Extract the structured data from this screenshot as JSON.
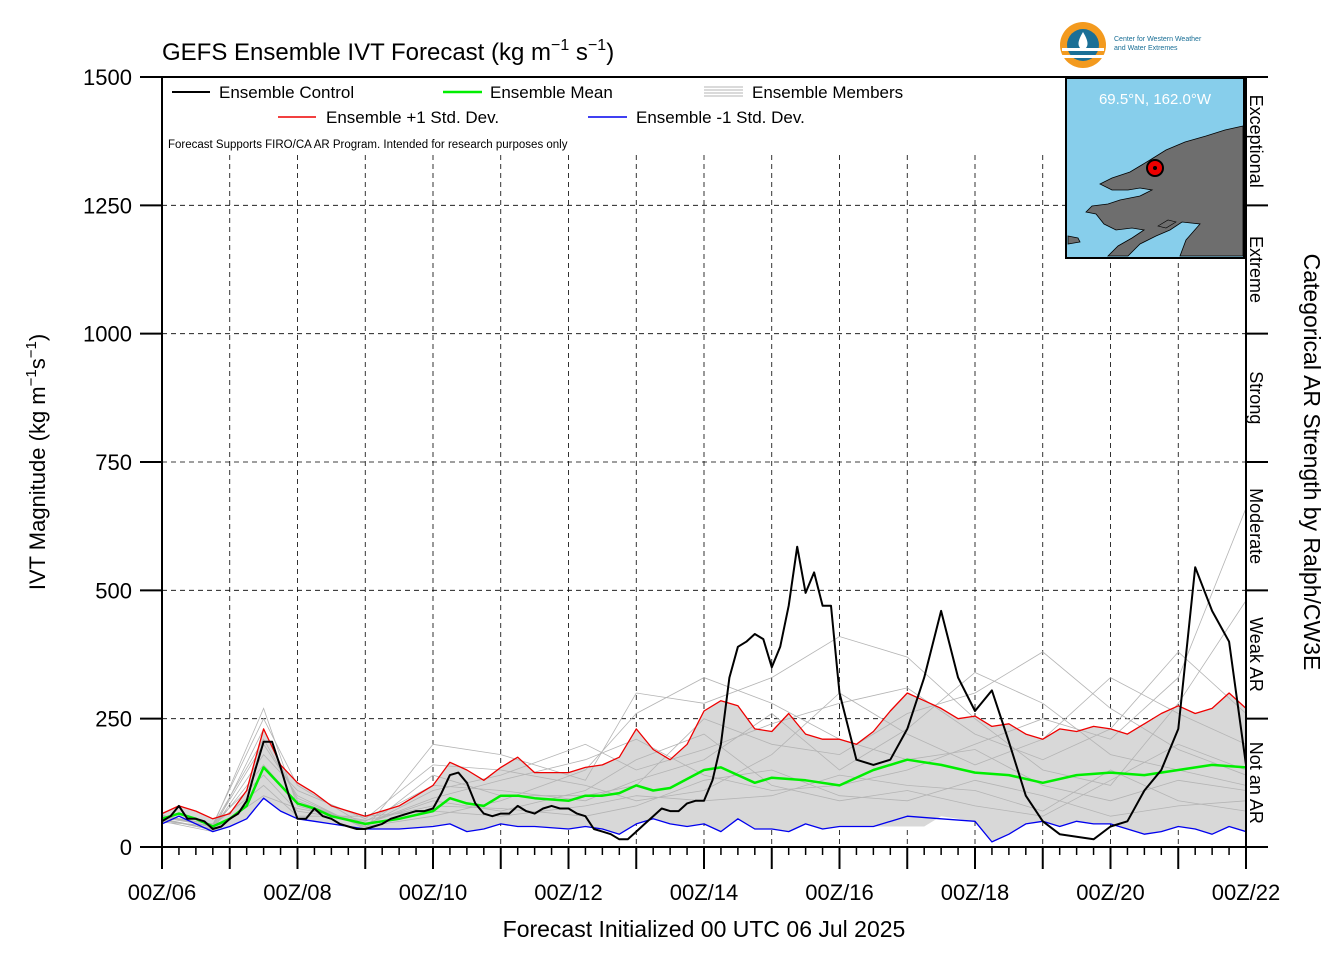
{
  "chart_data": {
    "type": "line",
    "title_main": "GEFS Ensemble IVT Forecast (kg m",
    "title_sup1": "−1",
    "title_mid": " s",
    "title_sup2": "−1",
    "title_end": ")",
    "ylabel": "IVT Magnitude (kg m−1s−1)",
    "xlabel": "Forecast Initialized 00 UTC 06 Jul 2025",
    "right_label": "Categorical AR Strength by Ralph/CW3E",
    "note": "Forecast Supports FIRO/CA AR Program. Intended for research purposes only",
    "logo_text": [
      "Center for Western Weather",
      "and Water Extremes"
    ],
    "inset_label": "69.5°N, 162.0°W",
    "ylim": [
      0,
      1500
    ],
    "yticks": [
      0,
      250,
      500,
      750,
      1000,
      1250,
      1500
    ],
    "xlim": [
      0,
      384
    ],
    "xticks": [
      {
        "hour": 0,
        "label": "00Z/06"
      },
      {
        "hour": 48,
        "label": "00Z/08"
      },
      {
        "hour": 96,
        "label": "00Z/10"
      },
      {
        "hour": 144,
        "label": "00Z/12"
      },
      {
        "hour": 192,
        "label": "00Z/14"
      },
      {
        "hour": 240,
        "label": "00Z/16"
      },
      {
        "hour": 288,
        "label": "00Z/18"
      },
      {
        "hour": 336,
        "label": "00Z/20"
      },
      {
        "hour": 384,
        "label": "00Z/22"
      }
    ],
    "categories": [
      {
        "label": "Not an AR",
        "from": 0,
        "to": 250
      },
      {
        "label": "Weak AR",
        "from": 250,
        "to": 500
      },
      {
        "label": "Moderate",
        "from": 500,
        "to": 750
      },
      {
        "label": "Strong",
        "from": 750,
        "to": 1000
      },
      {
        "label": "Extreme",
        "from": 1000,
        "to": 1250
      },
      {
        "label": "Exceptional",
        "from": 1250,
        "to": 1500
      }
    ],
    "legend": [
      {
        "label": "Ensemble Control",
        "color": "#000000"
      },
      {
        "label": "Ensemble Mean",
        "color": "#00ee00"
      },
      {
        "label": "Ensemble Members",
        "color": "#b4b4b4"
      },
      {
        "label": "Ensemble +1 Std. Dev.",
        "color": "#ee0000"
      },
      {
        "label": "Ensemble -1 Std. Dev.",
        "color": "#0000ee"
      }
    ],
    "series": [
      {
        "name": "Ensemble Control",
        "color": "#000000",
        "x": [
          0,
          3,
          6,
          9,
          12,
          15,
          18,
          21,
          24,
          27,
          30,
          33,
          36,
          39,
          42,
          45,
          48,
          51,
          54,
          57,
          60,
          63,
          66,
          69,
          72,
          75,
          78,
          81,
          84,
          87,
          90,
          93,
          96,
          99,
          102,
          105,
          108,
          111,
          114,
          117,
          120,
          123,
          126,
          129,
          132,
          135,
          138,
          141,
          144,
          147,
          150,
          153,
          156,
          159,
          162,
          165,
          168,
          171,
          174,
          177,
          180,
          183,
          186,
          189,
          192,
          195,
          198,
          201,
          204,
          207,
          210,
          213,
          216,
          219,
          222,
          225,
          228,
          231,
          234,
          237,
          240,
          246,
          252,
          258,
          264,
          270,
          276,
          282,
          288,
          294,
          300,
          306,
          312,
          318,
          324,
          330,
          336,
          342,
          348,
          354,
          360,
          366,
          372,
          378,
          384
        ],
        "y": [
          50,
          60,
          80,
          55,
          55,
          50,
          35,
          40,
          55,
          65,
          90,
          150,
          205,
          205,
          155,
          100,
          55,
          55,
          75,
          60,
          55,
          45,
          40,
          35,
          35,
          40,
          45,
          55,
          60,
          65,
          70,
          70,
          75,
          105,
          140,
          145,
          125,
          85,
          65,
          60,
          65,
          65,
          80,
          70,
          65,
          75,
          80,
          75,
          75,
          65,
          60,
          35,
          30,
          25,
          15,
          15,
          30,
          45,
          60,
          75,
          70,
          70,
          85,
          90,
          90,
          130,
          200,
          330,
          390,
          400,
          415,
          405,
          350,
          390,
          470,
          585,
          495,
          535,
          470,
          470,
          300,
          170,
          160,
          170,
          230,
          330,
          460,
          330,
          265,
          305,
          205,
          100,
          50,
          25,
          20,
          15,
          40,
          50,
          110,
          150,
          230,
          545,
          460,
          400,
          160
        ]
      },
      {
        "name": "Ensemble Mean",
        "color": "#00ee00",
        "x": [
          0,
          6,
          12,
          18,
          24,
          30,
          36,
          42,
          48,
          54,
          60,
          72,
          84,
          96,
          102,
          108,
          114,
          120,
          126,
          132,
          144,
          150,
          156,
          162,
          168,
          174,
          180,
          192,
          198,
          210,
          216,
          228,
          240,
          252,
          264,
          276,
          288,
          300,
          312,
          324,
          336,
          348,
          360,
          372,
          384
        ],
        "y": [
          55,
          65,
          55,
          40,
          55,
          80,
          155,
          120,
          85,
          75,
          60,
          45,
          55,
          70,
          95,
          85,
          80,
          100,
          100,
          95,
          90,
          100,
          100,
          105,
          120,
          110,
          115,
          150,
          155,
          125,
          135,
          130,
          120,
          150,
          170,
          160,
          145,
          140,
          125,
          140,
          145,
          140,
          150,
          160,
          155
        ]
      },
      {
        "name": "Ensemble +1 Std. Dev.",
        "color": "#ee0000",
        "x": [
          0,
          6,
          12,
          18,
          24,
          30,
          36,
          42,
          48,
          54,
          60,
          72,
          84,
          96,
          102,
          108,
          114,
          120,
          126,
          132,
          144,
          150,
          156,
          162,
          168,
          174,
          180,
          186,
          192,
          198,
          204,
          210,
          216,
          222,
          228,
          234,
          240,
          246,
          252,
          258,
          264,
          270,
          276,
          282,
          288,
          294,
          300,
          306,
          312,
          318,
          324,
          330,
          336,
          342,
          348,
          354,
          360,
          366,
          372,
          378,
          384
        ],
        "y": [
          65,
          80,
          70,
          55,
          65,
          110,
          230,
          160,
          125,
          105,
          80,
          60,
          80,
          120,
          165,
          150,
          130,
          155,
          175,
          145,
          145,
          155,
          160,
          175,
          230,
          190,
          170,
          200,
          265,
          285,
          275,
          230,
          225,
          260,
          220,
          210,
          210,
          200,
          225,
          265,
          300,
          285,
          270,
          250,
          255,
          235,
          240,
          220,
          210,
          230,
          225,
          235,
          230,
          220,
          240,
          260,
          275,
          260,
          270,
          300,
          270
        ]
      },
      {
        "name": "Ensemble -1 Std. Dev.",
        "color": "#0000ee",
        "x": [
          0,
          6,
          12,
          18,
          24,
          30,
          36,
          42,
          48,
          54,
          60,
          72,
          84,
          96,
          102,
          108,
          114,
          120,
          126,
          132,
          144,
          150,
          156,
          162,
          168,
          174,
          180,
          186,
          192,
          198,
          204,
          210,
          216,
          222,
          228,
          234,
          240,
          252,
          264,
          276,
          288,
          294,
          300,
          306,
          312,
          318,
          324,
          330,
          336,
          342,
          348,
          354,
          360,
          366,
          372,
          378,
          384
        ],
        "y": [
          45,
          60,
          45,
          30,
          40,
          55,
          95,
          70,
          55,
          50,
          45,
          35,
          35,
          40,
          45,
          30,
          35,
          45,
          40,
          40,
          35,
          40,
          35,
          25,
          45,
          55,
          45,
          40,
          45,
          30,
          55,
          35,
          35,
          30,
          45,
          35,
          40,
          40,
          60,
          55,
          50,
          10,
          25,
          45,
          50,
          40,
          50,
          45,
          45,
          35,
          25,
          30,
          40,
          35,
          25,
          40,
          30
        ]
      }
    ],
    "members_band": {
      "x": [
        0,
        6,
        12,
        18,
        24,
        30,
        36,
        42,
        48,
        54,
        60,
        72,
        84,
        96,
        102,
        108,
        114,
        120,
        126,
        132,
        144,
        150,
        156,
        162,
        168,
        174,
        180,
        186,
        192,
        198,
        204,
        210,
        216,
        222,
        228,
        234,
        240,
        246,
        252,
        258,
        264,
        270,
        276,
        282,
        288,
        294,
        300,
        306,
        312,
        318,
        324,
        330,
        336,
        342,
        348,
        354,
        360,
        366,
        372,
        378,
        384
      ],
      "upper": [
        65,
        80,
        70,
        55,
        65,
        110,
        230,
        160,
        125,
        105,
        80,
        60,
        80,
        120,
        165,
        150,
        130,
        155,
        175,
        145,
        145,
        155,
        160,
        175,
        230,
        190,
        170,
        200,
        265,
        285,
        275,
        230,
        225,
        260,
        220,
        210,
        210,
        200,
        225,
        265,
        300,
        285,
        270,
        250,
        255,
        235,
        240,
        220,
        210,
        230,
        225,
        235,
        230,
        220,
        240,
        260,
        275,
        260,
        270,
        300,
        270
      ],
      "lower": [
        45,
        60,
        45,
        30,
        40,
        55,
        95,
        70,
        55,
        50,
        45,
        35,
        35,
        40,
        45,
        30,
        35,
        45,
        40,
        40,
        35,
        40,
        35,
        25,
        45,
        55,
        45,
        40,
        45,
        30,
        55,
        35,
        35,
        30,
        45,
        35,
        40,
        40,
        40,
        40,
        40,
        40,
        60,
        55,
        50,
        10,
        25,
        45,
        50,
        40,
        50,
        45,
        45,
        35,
        25,
        30,
        40,
        35,
        25,
        40,
        30
      ]
    },
    "members": [
      [
        0,
        60,
        18,
        40,
        36,
        270,
        48,
        80,
        72,
        45,
        96,
        90,
        120,
        70,
        150,
        110,
        168,
        170,
        192,
        220,
        216,
        120,
        240,
        90,
        264,
        110,
        288,
        80,
        312,
        60,
        336,
        130,
        360,
        200,
        384,
        150
      ],
      [
        0,
        55,
        18,
        35,
        36,
        180,
        48,
        110,
        72,
        55,
        96,
        160,
        120,
        150,
        150,
        120,
        168,
        90,
        192,
        110,
        216,
        180,
        240,
        300,
        264,
        220,
        288,
        160,
        312,
        210,
        336,
        330,
        360,
        260,
        384,
        200
      ],
      [
        0,
        50,
        18,
        30,
        36,
        230,
        48,
        90,
        72,
        40,
        96,
        60,
        120,
        90,
        150,
        150,
        168,
        260,
        192,
        330,
        216,
        280,
        240,
        210,
        264,
        170,
        288,
        190,
        312,
        120,
        336,
        90,
        360,
        130,
        384,
        110
      ],
      [
        0,
        58,
        18,
        45,
        36,
        140,
        48,
        70,
        72,
        50,
        96,
        120,
        120,
        110,
        150,
        90,
        168,
        130,
        192,
        170,
        216,
        260,
        240,
        150,
        264,
        230,
        288,
        340,
        312,
        280,
        336,
        180,
        360,
        150,
        384,
        120
      ],
      [
        0,
        62,
        18,
        38,
        36,
        200,
        48,
        100,
        72,
        35,
        96,
        200,
        120,
        180,
        150,
        130,
        168,
        300,
        192,
        280,
        216,
        330,
        240,
        410,
        264,
        370,
        288,
        250,
        312,
        150,
        336,
        120,
        360,
        280,
        384,
        480
      ],
      [
        0,
        48,
        18,
        42,
        36,
        120,
        48,
        60,
        72,
        60,
        96,
        70,
        120,
        60,
        150,
        80,
        168,
        100,
        192,
        90,
        216,
        100,
        240,
        140,
        264,
        120,
        288,
        110,
        312,
        70,
        336,
        150,
        360,
        90,
        384,
        70
      ],
      [
        0,
        52,
        18,
        36,
        36,
        160,
        48,
        85,
        72,
        45,
        96,
        95,
        120,
        130,
        150,
        170,
        168,
        210,
        192,
        140,
        216,
        110,
        240,
        120,
        264,
        150,
        288,
        200,
        312,
        250,
        336,
        210,
        360,
        330,
        384,
        660
      ],
      [
        0,
        57,
        18,
        41,
        36,
        210,
        48,
        95,
        72,
        38,
        96,
        140,
        120,
        100,
        150,
        100,
        168,
        120,
        192,
        250,
        216,
        200,
        240,
        180,
        264,
        260,
        288,
        300,
        312,
        380,
        336,
        270,
        360,
        190,
        384,
        140
      ],
      [
        0,
        54,
        18,
        33,
        36,
        100,
        48,
        75,
        72,
        52,
        96,
        80,
        120,
        75,
        150,
        60,
        168,
        80,
        192,
        130,
        216,
        150,
        240,
        100,
        264,
        90,
        288,
        130,
        312,
        100,
        336,
        60,
        360,
        80,
        384,
        90
      ],
      [
        0,
        61,
        18,
        44,
        36,
        250,
        48,
        120,
        72,
        42,
        96,
        110,
        120,
        140,
        150,
        200,
        168,
        150,
        192,
        190,
        216,
        240,
        240,
        280,
        264,
        310,
        288,
        220,
        312,
        170,
        336,
        230,
        360,
        380,
        384,
        260
      ]
    ]
  }
}
